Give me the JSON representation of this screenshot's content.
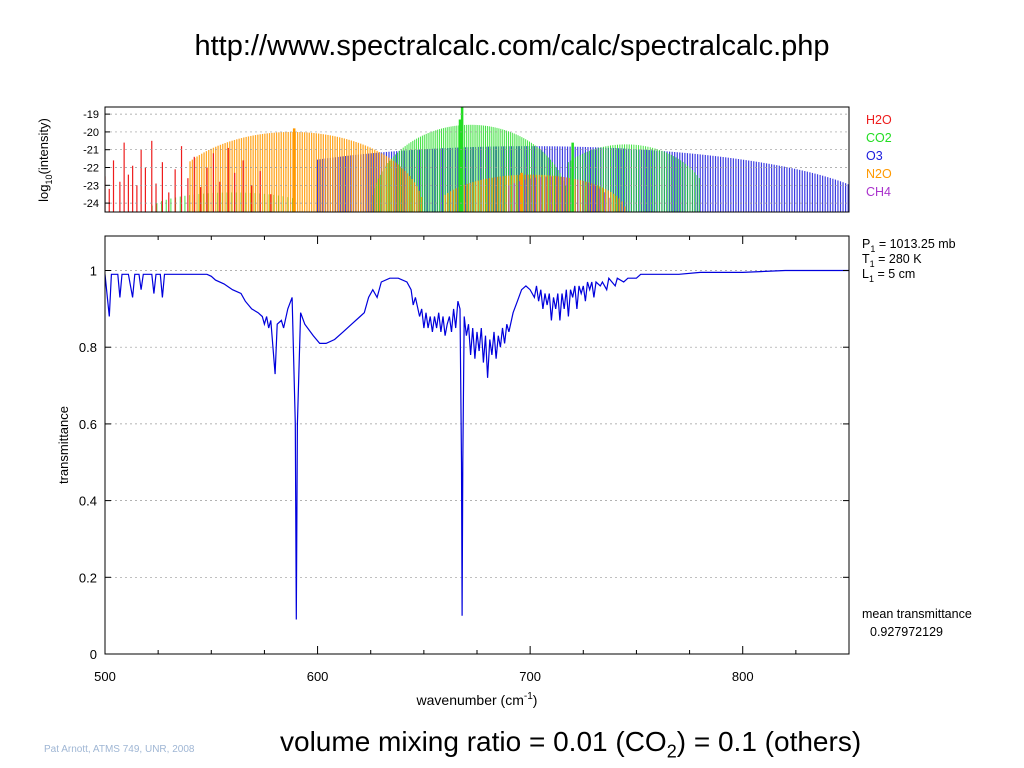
{
  "slide": {
    "title": "http://www.spectralcalc.com/calc/spectralcalc.php",
    "footer": "Pat Arnott, ATMS 749, UNR, 2008",
    "caption_before": "volume mixing ratio = 0.01 (CO",
    "caption_sub": "2",
    "caption_after": ") = 0.1 (others)"
  },
  "chart_data": [
    {
      "type": "area",
      "ylabel_main": "log",
      "ylabel_sub": "10",
      "ylabel_rest": "(intensity)",
      "ylim": [
        -24.5,
        -18.6
      ],
      "yticks": [
        "-19",
        "-20",
        "-21",
        "-22",
        "-23",
        "-24"
      ],
      "ytick_values": [
        -19,
        -20,
        -21,
        -22,
        -23,
        -24
      ],
      "grid": true,
      "legend_position": "right",
      "series": [
        {
          "name": "H2O",
          "color": "#ee1c1c"
        },
        {
          "name": "CO2",
          "color": "#22dd22"
        },
        {
          "name": "O3",
          "color": "#1a1add"
        },
        {
          "name": "N2O",
          "color": "#ff9900"
        },
        {
          "name": "CH4",
          "color": "#aa33cc"
        }
      ]
    },
    {
      "type": "line",
      "xlabel_main": "wavenumber (cm",
      "xlabel_sup": "-1",
      "xlabel_end": ")",
      "ylabel": "transmittance",
      "xlim": [
        500,
        850
      ],
      "ylim": [
        0,
        1.09
      ],
      "xticks": [
        "500",
        "600",
        "700",
        "800"
      ],
      "xtick_values": [
        500,
        600,
        700,
        800
      ],
      "yticks": [
        "0",
        "0.2",
        "0.4",
        "0.6",
        "0.8",
        "1"
      ],
      "ytick_values": [
        0,
        0.2,
        0.4,
        0.6,
        0.8,
        1.0
      ],
      "grid": true,
      "series_color": "#0000dd",
      "params": [
        {
          "name": "P",
          "sub": "1",
          "value": "= 1013.25 mb"
        },
        {
          "name": "T",
          "sub": "1",
          "value": "= 280 K"
        },
        {
          "name": "L",
          "sub": "1",
          "value": "= 5 cm"
        }
      ],
      "mean_label": "mean transmittance",
      "mean_value": "0.927972129",
      "points": [
        [
          500,
          0.99
        ],
        [
          502,
          0.88
        ],
        [
          503,
          0.99
        ],
        [
          506,
          0.99
        ],
        [
          507,
          0.93
        ],
        [
          508,
          0.99
        ],
        [
          511,
          0.99
        ],
        [
          513,
          0.93
        ],
        [
          514,
          0.99
        ],
        [
          516,
          0.99
        ],
        [
          517,
          0.95
        ],
        [
          518,
          0.99
        ],
        [
          520,
          0.99
        ],
        [
          522,
          0.99
        ],
        [
          523,
          0.94
        ],
        [
          524,
          0.99
        ],
        [
          526,
          0.99
        ],
        [
          527,
          0.93
        ],
        [
          528,
          0.99
        ],
        [
          532,
          0.99
        ],
        [
          540,
          0.99
        ],
        [
          548,
          0.99
        ],
        [
          550,
          0.985
        ],
        [
          552,
          0.975
        ],
        [
          556,
          0.965
        ],
        [
          560,
          0.95
        ],
        [
          564,
          0.94
        ],
        [
          566,
          0.92
        ],
        [
          569,
          0.9
        ],
        [
          572,
          0.89
        ],
        [
          574,
          0.88
        ],
        [
          575,
          0.86
        ],
        [
          576,
          0.88
        ],
        [
          577,
          0.85
        ],
        [
          578,
          0.87
        ],
        [
          580,
          0.73
        ],
        [
          581,
          0.86
        ],
        [
          583,
          0.87
        ],
        [
          584,
          0.85
        ],
        [
          586,
          0.9
        ],
        [
          588,
          0.93
        ],
        [
          589.5,
          0.6
        ],
        [
          590,
          0.09
        ],
        [
          590.5,
          0.6
        ],
        [
          592,
          0.89
        ],
        [
          594,
          0.86
        ],
        [
          598,
          0.83
        ],
        [
          601,
          0.81
        ],
        [
          604,
          0.81
        ],
        [
          608,
          0.82
        ],
        [
          612,
          0.84
        ],
        [
          616,
          0.86
        ],
        [
          620,
          0.88
        ],
        [
          622,
          0.89
        ],
        [
          624,
          0.93
        ],
        [
          626,
          0.95
        ],
        [
          628,
          0.93
        ],
        [
          630,
          0.97
        ],
        [
          634,
          0.98
        ],
        [
          638,
          0.98
        ],
        [
          642,
          0.97
        ],
        [
          644,
          0.95
        ],
        [
          645,
          0.91
        ],
        [
          646,
          0.93
        ],
        [
          648,
          0.88
        ],
        [
          649,
          0.9
        ],
        [
          650,
          0.85
        ],
        [
          651,
          0.89
        ],
        [
          652,
          0.85
        ],
        [
          653,
          0.88
        ],
        [
          654,
          0.84
        ],
        [
          655,
          0.88
        ],
        [
          656,
          0.85
        ],
        [
          657,
          0.89
        ],
        [
          658,
          0.84
        ],
        [
          659,
          0.88
        ],
        [
          660,
          0.83
        ],
        [
          661,
          0.86
        ],
        [
          662,
          0.88
        ],
        [
          663,
          0.84
        ],
        [
          664,
          0.9
        ],
        [
          665,
          0.85
        ],
        [
          666,
          0.92
        ],
        [
          667,
          0.9
        ],
        [
          667.7,
          0.5
        ],
        [
          668,
          0.1
        ],
        [
          668.3,
          0.5
        ],
        [
          669,
          0.88
        ],
        [
          670,
          0.83
        ],
        [
          671,
          0.86
        ],
        [
          672,
          0.78
        ],
        [
          673,
          0.85
        ],
        [
          674,
          0.77
        ],
        [
          675,
          0.84
        ],
        [
          676,
          0.79
        ],
        [
          677,
          0.85
        ],
        [
          678,
          0.76
        ],
        [
          679,
          0.83
        ],
        [
          680,
          0.72
        ],
        [
          681,
          0.82
        ],
        [
          682,
          0.78
        ],
        [
          683,
          0.84
        ],
        [
          684,
          0.77
        ],
        [
          685,
          0.83
        ],
        [
          686,
          0.8
        ],
        [
          687,
          0.85
        ],
        [
          688,
          0.81
        ],
        [
          689,
          0.86
        ],
        [
          690,
          0.84
        ],
        [
          692,
          0.89
        ],
        [
          694,
          0.92
        ],
        [
          696,
          0.95
        ],
        [
          698,
          0.96
        ],
        [
          700,
          0.95
        ],
        [
          702,
          0.93
        ],
        [
          703,
          0.96
        ],
        [
          704,
          0.92
        ],
        [
          705,
          0.95
        ],
        [
          706,
          0.9
        ],
        [
          707,
          0.94
        ],
        [
          708,
          0.91
        ],
        [
          709,
          0.94
        ],
        [
          710,
          0.87
        ],
        [
          711,
          0.93
        ],
        [
          712,
          0.9
        ],
        [
          713,
          0.94
        ],
        [
          714,
          0.87
        ],
        [
          715,
          0.94
        ],
        [
          716,
          0.9
        ],
        [
          717,
          0.95
        ],
        [
          718,
          0.88
        ],
        [
          719,
          0.95
        ],
        [
          720,
          0.93
        ],
        [
          721,
          0.96
        ],
        [
          722,
          0.9
        ],
        [
          723,
          0.96
        ],
        [
          724,
          0.94
        ],
        [
          725,
          0.96
        ],
        [
          726,
          0.92
        ],
        [
          727,
          0.97
        ],
        [
          728,
          0.95
        ],
        [
          729,
          0.97
        ],
        [
          730,
          0.93
        ],
        [
          731,
          0.97
        ],
        [
          733,
          0.96
        ],
        [
          734,
          0.97
        ],
        [
          736,
          0.95
        ],
        [
          737,
          0.98
        ],
        [
          740,
          0.96
        ],
        [
          741,
          0.98
        ],
        [
          744,
          0.97
        ],
        [
          746,
          0.98
        ],
        [
          750,
          0.98
        ],
        [
          752,
          0.99
        ],
        [
          760,
          0.99
        ],
        [
          770,
          0.99
        ],
        [
          780,
          0.995
        ],
        [
          800,
          0.995
        ],
        [
          820,
          1.0
        ],
        [
          850,
          1.0
        ]
      ]
    }
  ]
}
